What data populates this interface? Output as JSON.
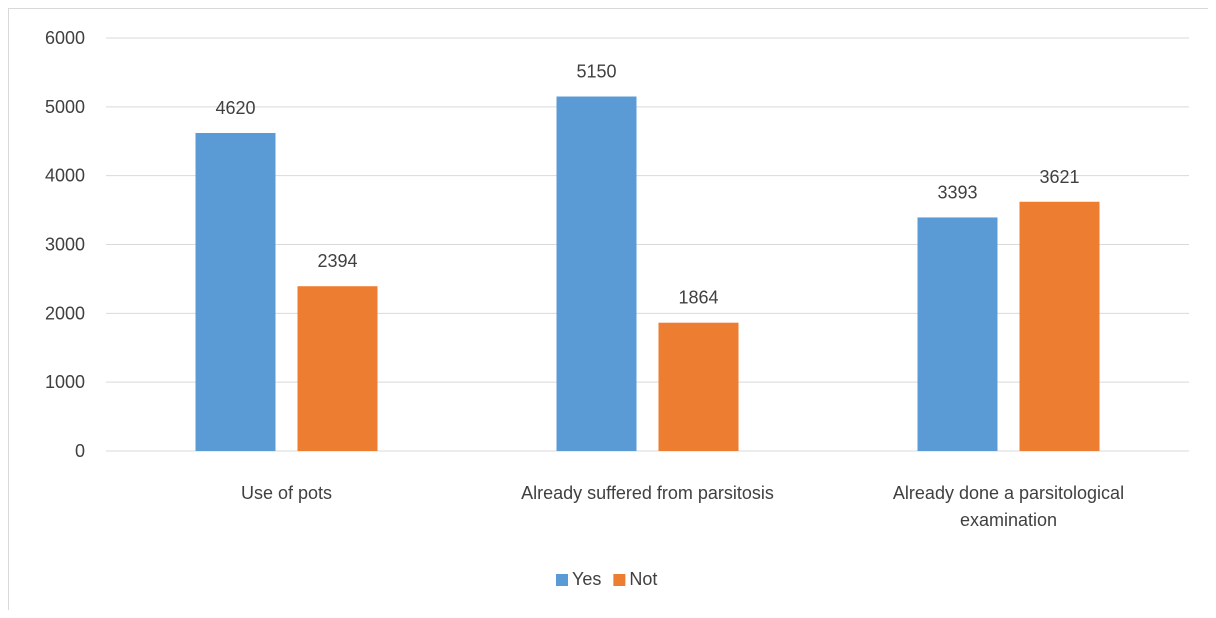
{
  "chart_data": {
    "type": "bar",
    "title": "",
    "xlabel": "",
    "ylabel": "",
    "categories": [
      [
        "Use of pots"
      ],
      [
        "Already suffered from parsitosis"
      ],
      [
        "Already done a parsitological",
        "examination"
      ]
    ],
    "series": [
      {
        "name": "Yes",
        "values": [
          4620,
          5150,
          3393
        ],
        "color": "#5b9bd5"
      },
      {
        "name": "Not",
        "values": [
          2394,
          1864,
          3621
        ],
        "color": "#ed7d31"
      }
    ],
    "ylim": [
      0,
      6000
    ],
    "yticks": [
      0,
      1000,
      2000,
      3000,
      4000,
      5000,
      6000
    ],
    "grid": true,
    "data_labels": true,
    "legend_position": "bottom",
    "gridline_color": "#d9d9d9"
  }
}
